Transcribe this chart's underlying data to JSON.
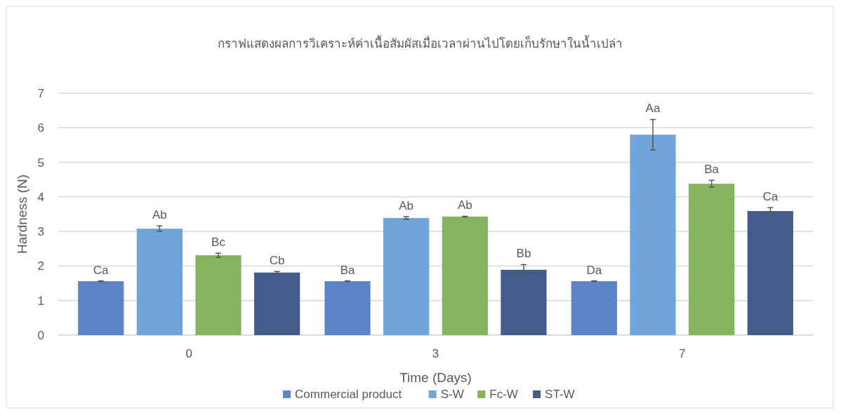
{
  "chart_data": {
    "type": "bar",
    "title": "กราฟแสดงผลการวิเคราะห์ค่าเนื้อสัมผัสเมื่อเวลาผ่านไปโดยเก็บรักษาในน้ำเปล่า",
    "xlabel": "Time (Days)",
    "ylabel": "Hardness (N)",
    "categories": [
      "0",
      "3",
      "7"
    ],
    "series": [
      {
        "name": "Commercial product",
        "color": "#5b84c9",
        "values": [
          1.56,
          1.56,
          1.56
        ],
        "errors": [
          0.01,
          0.01,
          0.01
        ],
        "value_labels": [
          "Ca",
          "Ba",
          "Da"
        ]
      },
      {
        "name": "S-W",
        "color": "#6fa5d9",
        "values": [
          3.08,
          3.39,
          5.8
        ],
        "errors": [
          0.08,
          0.04,
          0.44
        ],
        "value_labels": [
          "Ab",
          "Ab",
          "Aa"
        ]
      },
      {
        "name": "Fc-W",
        "color": "#83b55f",
        "values": [
          2.31,
          3.43,
          4.38
        ],
        "errors": [
          0.06,
          0.01,
          0.1
        ],
        "value_labels": [
          "Bc",
          "Ab",
          "Ba"
        ]
      },
      {
        "name": "ST-W",
        "color": "#445c8a",
        "values": [
          1.81,
          1.89,
          3.59
        ],
        "errors": [
          0.03,
          0.15,
          0.1
        ],
        "value_labels": [
          "Cb",
          "Bb",
          "Ca"
        ]
      }
    ],
    "ylim": [
      0,
      7
    ],
    "yticks": [
      0,
      1,
      2,
      3,
      4,
      5,
      6,
      7
    ],
    "grid": "y",
    "legend": "bottom"
  }
}
